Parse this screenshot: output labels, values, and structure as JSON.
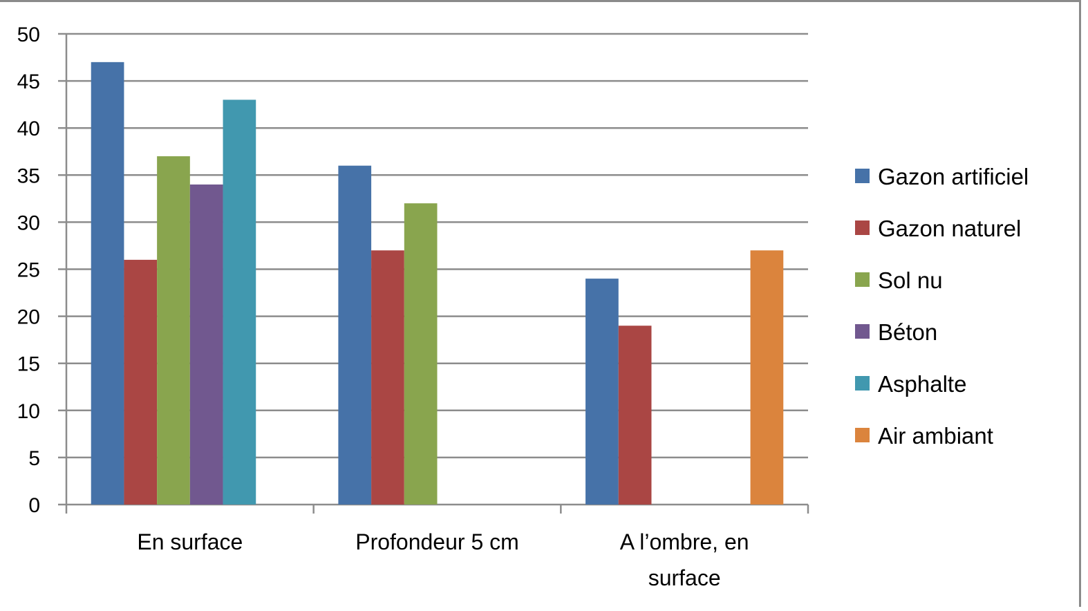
{
  "chart_data": {
    "type": "bar",
    "categories": [
      "En surface",
      "Profondeur 5 cm",
      "A l’ombre, en surface"
    ],
    "category_lines": [
      [
        "En surface"
      ],
      [
        "Profondeur 5 cm"
      ],
      [
        "A l’ombre, en",
        "surface"
      ]
    ],
    "series": [
      {
        "name": "Gazon artificiel",
        "color": "#4672a8",
        "values": [
          47,
          36,
          24
        ]
      },
      {
        "name": "Gazon naturel",
        "color": "#aa4644",
        "values": [
          26,
          27,
          19
        ]
      },
      {
        "name": "Sol nu",
        "color": "#89a54e",
        "values": [
          37,
          32,
          null
        ]
      },
      {
        "name": "Béton",
        "color": "#71588f",
        "values": [
          34,
          null,
          null
        ]
      },
      {
        "name": "Asphalte",
        "color": "#4198af",
        "values": [
          43,
          null,
          null
        ]
      },
      {
        "name": "Air ambiant",
        "color": "#db843d",
        "values": [
          null,
          null,
          27
        ]
      }
    ],
    "ylim": [
      0,
      50
    ],
    "yticks": [
      0,
      5,
      10,
      15,
      20,
      25,
      30,
      35,
      40,
      45,
      50
    ],
    "grid": true,
    "legend_position": "right",
    "title": "",
    "xlabel": "",
    "ylabel": ""
  }
}
